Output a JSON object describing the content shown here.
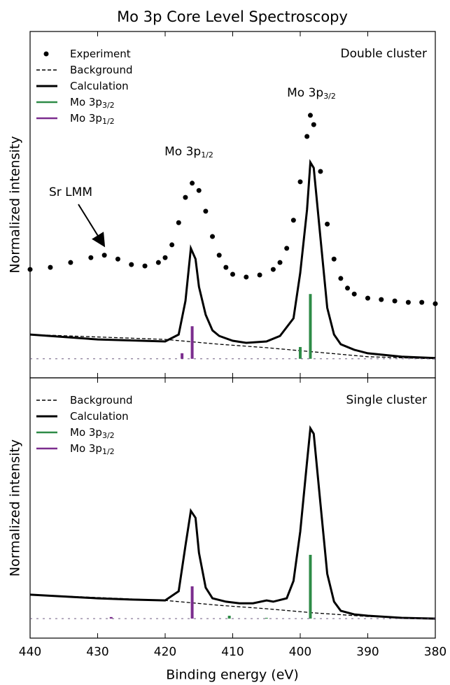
{
  "chart_data": [
    {
      "type": "spectrum",
      "title": "Mo 3p Core Level Spectroscopy",
      "ylabel": "Normalized intensity",
      "panel_label": "Double cluster",
      "annotations": [
        {
          "text": "Mo 3p",
          "sub": "1/2"
        },
        {
          "text": "Mo 3p",
          "sub": "3/2"
        },
        {
          "text": "Sr LMM"
        }
      ],
      "xlim": [
        440,
        380
      ],
      "ylim": [
        0,
        1
      ],
      "stick_baseline": 0.055,
      "series": [
        {
          "name": "Experiment",
          "style": "dots",
          "color": "#000000",
          "x": [
            440,
            437,
            434,
            431,
            429,
            427,
            425,
            423,
            421,
            420,
            419,
            418,
            417,
            416,
            415,
            414,
            413,
            412,
            411,
            410,
            408,
            406,
            404,
            403,
            402,
            401,
            400,
            399,
            398.5,
            398,
            397,
            396,
            395,
            394,
            393,
            392,
            390,
            388,
            386,
            384,
            382,
            380
          ],
          "values": [
            0.313,
            0.319,
            0.333,
            0.347,
            0.354,
            0.343,
            0.327,
            0.323,
            0.333,
            0.347,
            0.384,
            0.448,
            0.521,
            0.562,
            0.541,
            0.481,
            0.408,
            0.354,
            0.319,
            0.299,
            0.291,
            0.297,
            0.313,
            0.333,
            0.374,
            0.455,
            0.566,
            0.697,
            0.758,
            0.731,
            0.596,
            0.444,
            0.343,
            0.287,
            0.259,
            0.242,
            0.23,
            0.226,
            0.222,
            0.218,
            0.218,
            0.214
          ]
        },
        {
          "name": "Background",
          "style": "dashed",
          "color": "#000000",
          "x": [
            440,
            420,
            412,
            405,
            398,
            390,
            380
          ],
          "values": [
            0.125,
            0.111,
            0.097,
            0.087,
            0.075,
            0.061,
            0.055
          ]
        },
        {
          "name": "Calculation",
          "style": "solid",
          "color": "#000000",
          "x": [
            440,
            430,
            420,
            418,
            417,
            416.2,
            415.5,
            415,
            414,
            413,
            412,
            410,
            408,
            405,
            403,
            401,
            400,
            399,
            398.5,
            398,
            397,
            396,
            395,
            394,
            392,
            390,
            385,
            380
          ],
          "values": [
            0.125,
            0.111,
            0.105,
            0.125,
            0.222,
            0.374,
            0.343,
            0.263,
            0.182,
            0.137,
            0.121,
            0.107,
            0.101,
            0.105,
            0.121,
            0.172,
            0.303,
            0.485,
            0.622,
            0.606,
            0.404,
            0.202,
            0.125,
            0.097,
            0.081,
            0.071,
            0.061,
            0.057
          ]
        },
        {
          "name": "Mo 3p",
          "sub": "3/2",
          "style": "sticks",
          "color": "#2e8b47",
          "x": [
            398.5,
            400
          ],
          "values": [
            0.242,
            0.089
          ]
        },
        {
          "name": "Mo 3p",
          "sub": "1/2",
          "style": "sticks",
          "color": "#7b2d8e",
          "x": [
            416,
            417.5
          ],
          "values": [
            0.149,
            0.071
          ]
        }
      ]
    },
    {
      "type": "spectrum",
      "ylabel": "Normalized intensity",
      "xlabel": "Binding energy (eV)",
      "panel_label": "Single cluster",
      "xlim": [
        440,
        380
      ],
      "ylim": [
        0,
        1
      ],
      "xticks": [
        440,
        430,
        420,
        410,
        400,
        390,
        380
      ],
      "stick_baseline": 0.075,
      "series": [
        {
          "name": "Background",
          "style": "dashed",
          "color": "#000000",
          "x": [
            440,
            420,
            412,
            405,
            398,
            390,
            380
          ],
          "values": [
            0.167,
            0.145,
            0.126,
            0.113,
            0.097,
            0.083,
            0.075
          ]
        },
        {
          "name": "Calculation",
          "style": "solid",
          "color": "#000000",
          "x": [
            440,
            430,
            425,
            420,
            418,
            417,
            416.2,
            415.5,
            415,
            414,
            413,
            411,
            409,
            407,
            405,
            404,
            402,
            401,
            400,
            399,
            398.5,
            398,
            397,
            396,
            395,
            394,
            392,
            390,
            385,
            380
          ],
          "values": [
            0.167,
            0.153,
            0.148,
            0.145,
            0.18,
            0.355,
            0.489,
            0.462,
            0.328,
            0.194,
            0.153,
            0.14,
            0.134,
            0.134,
            0.145,
            0.14,
            0.153,
            0.22,
            0.409,
            0.677,
            0.806,
            0.785,
            0.516,
            0.247,
            0.14,
            0.105,
            0.091,
            0.086,
            0.078,
            0.075
          ]
        },
        {
          "name": "Mo 3p",
          "sub": "3/2",
          "style": "sticks",
          "color": "#2e8b47",
          "x": [
            398.5,
            405,
            410.5
          ],
          "values": [
            0.32,
            0.078,
            0.086
          ]
        },
        {
          "name": "Mo 3p",
          "sub": "1/2",
          "style": "sticks",
          "color": "#7b2d8e",
          "x": [
            416,
            428
          ],
          "values": [
            0.199,
            0.081
          ]
        }
      ]
    }
  ]
}
